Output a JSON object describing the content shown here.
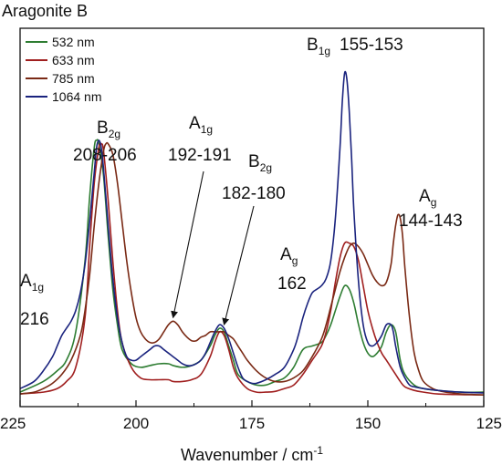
{
  "chart_data": {
    "type": "line",
    "title": "Aragonite B",
    "xlabel": "Wavenumber / cm",
    "xlabel_sup": "-1",
    "xlim": [
      225,
      125
    ],
    "ylim": [
      0,
      1
    ],
    "x_reversed": true,
    "y_ticks_shown": false,
    "x_ticks": [
      225,
      200,
      175,
      150,
      125
    ],
    "x_tick_labels": [
      "225",
      "200",
      "175",
      "150",
      "125"
    ],
    "grid": false,
    "legend_position": "top-left",
    "series": [
      {
        "name": "532 nm",
        "color": "#2e7d32",
        "x": [
          225,
          220,
          217,
          215,
          213,
          211,
          210,
          209,
          208.5,
          208,
          207,
          206,
          205,
          204,
          203,
          201,
          199,
          197,
          195,
          193,
          192,
          190,
          188,
          186,
          184,
          183,
          182,
          181,
          180,
          179,
          178,
          176,
          174,
          172,
          170,
          168,
          166,
          164,
          162,
          160,
          159,
          158,
          157,
          156,
          155,
          154,
          153,
          152,
          151,
          150,
          149,
          148,
          147,
          146,
          145,
          144,
          143,
          142,
          140,
          138,
          135,
          130,
          125
        ],
        "y": [
          0.01,
          0.04,
          0.07,
          0.1,
          0.18,
          0.38,
          0.56,
          0.7,
          0.72,
          0.71,
          0.62,
          0.45,
          0.3,
          0.2,
          0.13,
          0.09,
          0.08,
          0.085,
          0.09,
          0.09,
          0.085,
          0.08,
          0.085,
          0.1,
          0.14,
          0.17,
          0.19,
          0.18,
          0.14,
          0.1,
          0.06,
          0.04,
          0.03,
          0.03,
          0.04,
          0.05,
          0.08,
          0.13,
          0.14,
          0.15,
          0.17,
          0.2,
          0.24,
          0.28,
          0.31,
          0.3,
          0.26,
          0.2,
          0.15,
          0.12,
          0.11,
          0.12,
          0.14,
          0.18,
          0.2,
          0.18,
          0.1,
          0.06,
          0.03,
          0.02,
          0.015,
          0.01,
          0.01
        ]
      },
      {
        "name": "633 nm",
        "color": "#a01f1f",
        "x": [
          225,
          220,
          217,
          215,
          213,
          211,
          210,
          209,
          208,
          207.5,
          207,
          206,
          205,
          204,
          203,
          201,
          199,
          197,
          195,
          193,
          192,
          190,
          188,
          186,
          184,
          183,
          182,
          181,
          180,
          179,
          178,
          176,
          174,
          172,
          170,
          168,
          166,
          164,
          162,
          160,
          159,
          158,
          157,
          156,
          155,
          154,
          153,
          152,
          151,
          150,
          149,
          148,
          147,
          146,
          145,
          144,
          143,
          142,
          140,
          138,
          135,
          130,
          125
        ],
        "y": [
          0.005,
          0.01,
          0.02,
          0.04,
          0.08,
          0.22,
          0.42,
          0.6,
          0.7,
          0.71,
          0.69,
          0.55,
          0.38,
          0.24,
          0.15,
          0.08,
          0.05,
          0.045,
          0.045,
          0.045,
          0.04,
          0.04,
          0.045,
          0.06,
          0.11,
          0.15,
          0.18,
          0.17,
          0.13,
          0.08,
          0.05,
          0.02,
          0.01,
          0.01,
          0.012,
          0.02,
          0.03,
          0.06,
          0.1,
          0.14,
          0.18,
          0.24,
          0.32,
          0.39,
          0.43,
          0.43,
          0.42,
          0.38,
          0.31,
          0.24,
          0.19,
          0.15,
          0.12,
          0.1,
          0.08,
          0.06,
          0.04,
          0.025,
          0.015,
          0.01,
          0.005,
          0.003,
          0.002
        ]
      },
      {
        "name": "785 nm",
        "color": "#7a2a15",
        "x": [
          225,
          222,
          220,
          218,
          216,
          214,
          212,
          211,
          210,
          209,
          208,
          207,
          206.5,
          206,
          205,
          204,
          203,
          202,
          201,
          200,
          199,
          198,
          197,
          196,
          195,
          194,
          193,
          192,
          191,
          190,
          189,
          188,
          187,
          186,
          185,
          184,
          183,
          182,
          181,
          180,
          179,
          178,
          177,
          176,
          174,
          172,
          170,
          168,
          166,
          164,
          162,
          160,
          159,
          158,
          157,
          156,
          155,
          154,
          153,
          152,
          151,
          150,
          149,
          148,
          147,
          146,
          145,
          144.5,
          144,
          143.5,
          143,
          142.5,
          142,
          141,
          140,
          139,
          138,
          136,
          134,
          132,
          130,
          127,
          125
        ],
        "y": [
          0.005,
          0.01,
          0.02,
          0.035,
          0.06,
          0.1,
          0.17,
          0.24,
          0.34,
          0.48,
          0.6,
          0.69,
          0.71,
          0.71,
          0.68,
          0.6,
          0.49,
          0.38,
          0.29,
          0.22,
          0.18,
          0.16,
          0.15,
          0.15,
          0.16,
          0.18,
          0.2,
          0.21,
          0.2,
          0.18,
          0.165,
          0.155,
          0.155,
          0.165,
          0.17,
          0.18,
          0.18,
          0.18,
          0.18,
          0.17,
          0.16,
          0.14,
          0.12,
          0.1,
          0.07,
          0.05,
          0.04,
          0.04,
          0.05,
          0.07,
          0.11,
          0.16,
          0.2,
          0.25,
          0.3,
          0.35,
          0.39,
          0.42,
          0.43,
          0.42,
          0.4,
          0.37,
          0.34,
          0.32,
          0.31,
          0.32,
          0.37,
          0.43,
          0.48,
          0.51,
          0.5,
          0.45,
          0.36,
          0.22,
          0.12,
          0.07,
          0.04,
          0.02,
          0.012,
          0.008,
          0.005,
          0.003,
          0.002
        ]
      },
      {
        "name": "1064 nm",
        "color": "#1a237e",
        "x": [
          225,
          222,
          220,
          218,
          217,
          216,
          215,
          214,
          213,
          212,
          211,
          210,
          209,
          208.5,
          208,
          207.5,
          207,
          206,
          205,
          204,
          203,
          202,
          201,
          200,
          199,
          198,
          197,
          196,
          195,
          194,
          193,
          192,
          191,
          190,
          189,
          188,
          187,
          186,
          185,
          184,
          183,
          182,
          181,
          180,
          179,
          178,
          177,
          176,
          175,
          174,
          172,
          170,
          168,
          166,
          165,
          164,
          163,
          162,
          161,
          160,
          159,
          158,
          157,
          156,
          155.5,
          155,
          154.5,
          154,
          153.5,
          153,
          152,
          151,
          150,
          149,
          148,
          147,
          146,
          145,
          144.5,
          144,
          143,
          142,
          141,
          140,
          138,
          135,
          130,
          125
        ],
        "y": [
          0.02,
          0.04,
          0.07,
          0.11,
          0.14,
          0.17,
          0.19,
          0.21,
          0.24,
          0.29,
          0.37,
          0.49,
          0.63,
          0.7,
          0.72,
          0.7,
          0.64,
          0.48,
          0.33,
          0.22,
          0.15,
          0.11,
          0.1,
          0.1,
          0.11,
          0.12,
          0.13,
          0.14,
          0.14,
          0.13,
          0.12,
          0.11,
          0.1,
          0.09,
          0.085,
          0.085,
          0.09,
          0.1,
          0.12,
          0.15,
          0.18,
          0.2,
          0.19,
          0.16,
          0.12,
          0.08,
          0.05,
          0.04,
          0.035,
          0.035,
          0.045,
          0.06,
          0.08,
          0.13,
          0.17,
          0.22,
          0.26,
          0.29,
          0.3,
          0.31,
          0.33,
          0.38,
          0.5,
          0.7,
          0.83,
          0.91,
          0.89,
          0.8,
          0.67,
          0.52,
          0.32,
          0.2,
          0.15,
          0.14,
          0.15,
          0.17,
          0.2,
          0.2,
          0.18,
          0.14,
          0.08,
          0.05,
          0.03,
          0.025,
          0.02,
          0.015,
          0.01,
          0.008
        ]
      }
    ],
    "annotations": [
      {
        "id": "a1g-216",
        "sym": "A",
        "sub": "1g",
        "value": "216",
        "label_x": 219,
        "arrow": false
      },
      {
        "id": "b2g-208",
        "sym": "B",
        "sub": "2g",
        "value": "208-206",
        "label_x": 207,
        "arrow": false
      },
      {
        "id": "a1g-192",
        "sym": "A",
        "sub": "1g",
        "value": "192-191",
        "label_x": 189,
        "arrow": true,
        "arrow_to_x": 192,
        "arrow_to_y": 0.21
      },
      {
        "id": "b2g-182",
        "sym": "B",
        "sub": "2g",
        "value": "182-180",
        "label_x": 178,
        "arrow": true,
        "arrow_to_x": 181,
        "arrow_to_y": 0.19
      },
      {
        "id": "ag-162",
        "sym": "A",
        "sub": "g",
        "value": "162",
        "label_x": 162,
        "arrow": false
      },
      {
        "id": "b1g-155",
        "sym": "B",
        "sub": "1g",
        "value": "155-153",
        "label_x": 154,
        "arrow": false
      },
      {
        "id": "ag-144",
        "sym": "A",
        "sub": "g",
        "value": "144-143",
        "label_x": 140,
        "arrow": false
      }
    ]
  }
}
